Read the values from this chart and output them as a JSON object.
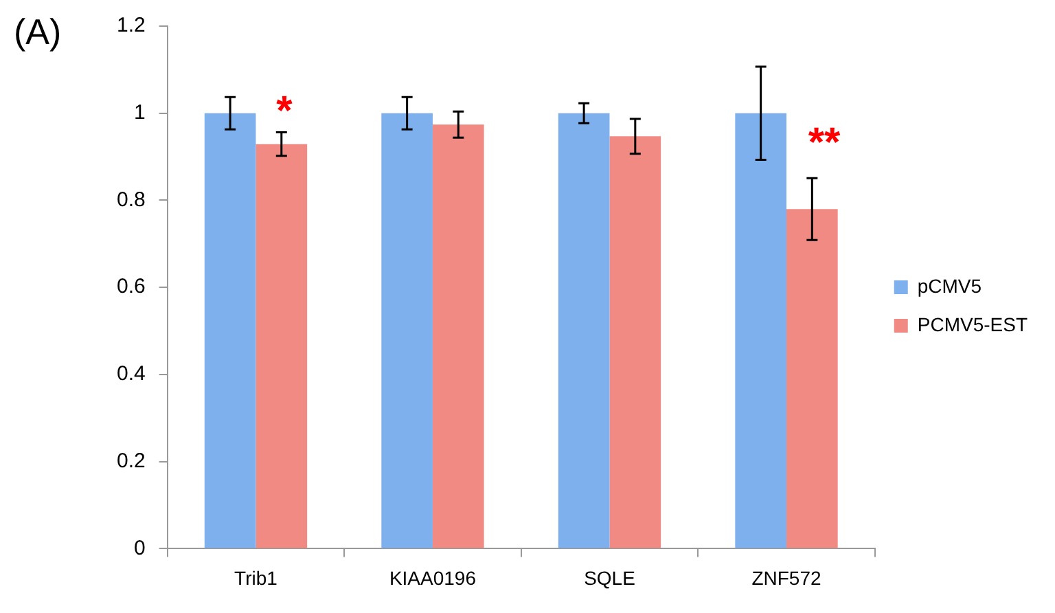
{
  "chart_data": {
    "type": "bar",
    "categories": [
      "Trib1",
      "KIAA0196",
      "SQLE",
      "ZNF572"
    ],
    "series": [
      {
        "name": "pCMV5",
        "color": "#7fb0ee",
        "values": [
          1,
          1,
          1,
          1
        ],
        "errors": [
          0.037,
          0.037,
          0.023,
          0.107
        ]
      },
      {
        "name": "PCMV5-EST",
        "color": "#f08a82",
        "values": [
          0.929,
          0.974,
          0.947,
          0.78
        ],
        "errors": [
          0.027,
          0.03,
          0.04,
          0.071
        ]
      }
    ],
    "ylim": [
      0,
      1.2
    ],
    "yticks": [
      0,
      {
        "value": 0.2,
        "label": "0.2"
      },
      {
        "value": 0.4,
        "label": "0.4"
      },
      {
        "value": 0.6,
        "label": "0.6"
      },
      {
        "value": 0.8,
        "label": "0.8"
      },
      1,
      {
        "value": 1.2,
        "label": "1.2"
      }
    ],
    "grid": false,
    "legend": "right",
    "annotations": [
      "(A)",
      "*",
      "**"
    ]
  }
}
